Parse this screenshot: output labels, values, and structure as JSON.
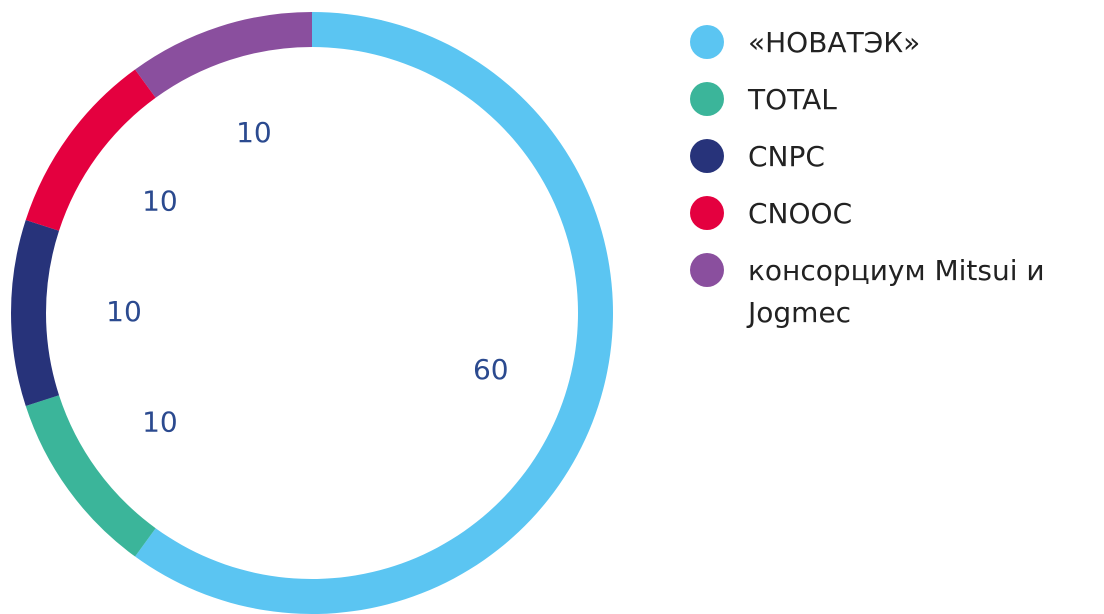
{
  "chart_data": {
    "type": "donut",
    "categories": [
      "«НОВАТЭК»",
      "TOTAL",
      "CNPC",
      "CNOOC",
      "консорциум Mitsui и Jogmec"
    ],
    "values": [
      60,
      10,
      10,
      10,
      10
    ],
    "colors": [
      "#5bc5f2",
      "#3bb59a",
      "#27337a",
      "#e4003f",
      "#8a4f9e"
    ]
  }
}
